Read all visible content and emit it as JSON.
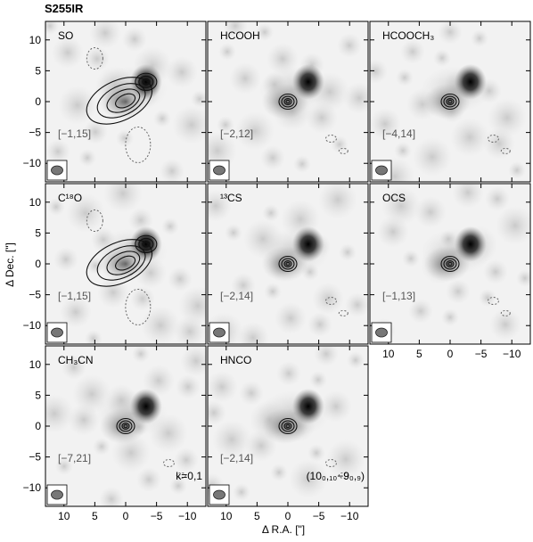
{
  "source": "S255IR",
  "ylabel": "Δ Dec. [\"]",
  "xlabel": "Δ R.A. [\"]",
  "ticks": [
    "10",
    "5",
    "0",
    "−5",
    "−10"
  ],
  "panels": [
    {
      "id": "so",
      "molecule": "SO",
      "range": "[−1,15]",
      "note": "",
      "show_x_ticks": false,
      "show_y_ticks": true,
      "has_contours": true,
      "contour_extent": "extended"
    },
    {
      "id": "hcooh",
      "molecule": "HCOOH",
      "range": "[−2,12]",
      "note": "",
      "show_x_ticks": false,
      "show_y_ticks": false,
      "has_contours": true,
      "contour_extent": "compact"
    },
    {
      "id": "hcooch3",
      "molecule": "HCOOCH₃",
      "range": "[−4,14]",
      "note": "",
      "show_x_ticks": false,
      "show_y_ticks": false,
      "has_contours": true,
      "contour_extent": "compact"
    },
    {
      "id": "c18o",
      "molecule": "C¹⁸O",
      "range": "[−1,15]",
      "note": "",
      "show_x_ticks": false,
      "show_y_ticks": true,
      "has_contours": true,
      "contour_extent": "extended"
    },
    {
      "id": "13cs",
      "molecule": "¹³CS",
      "range": "[−2,14]",
      "note": "",
      "show_x_ticks": false,
      "show_y_ticks": false,
      "has_contours": true,
      "contour_extent": "compact"
    },
    {
      "id": "ocs",
      "molecule": "OCS",
      "range": "[−1,13]",
      "note": "",
      "show_x_ticks": true,
      "show_y_ticks": false,
      "has_contours": true,
      "contour_extent": "compact"
    },
    {
      "id": "ch3cn",
      "molecule": "CH₃CN",
      "range": "[−7,21]",
      "note": "k=0,1",
      "show_x_ticks": true,
      "show_y_ticks": true,
      "has_contours": true,
      "contour_extent": "compact"
    },
    {
      "id": "hnco",
      "molecule": "HNCO",
      "range": "[−2,14]",
      "note": "(10₀,₁₀−9₀,₉)",
      "show_x_ticks": true,
      "show_y_ticks": false,
      "has_contours": true,
      "contour_extent": "compact"
    }
  ]
}
